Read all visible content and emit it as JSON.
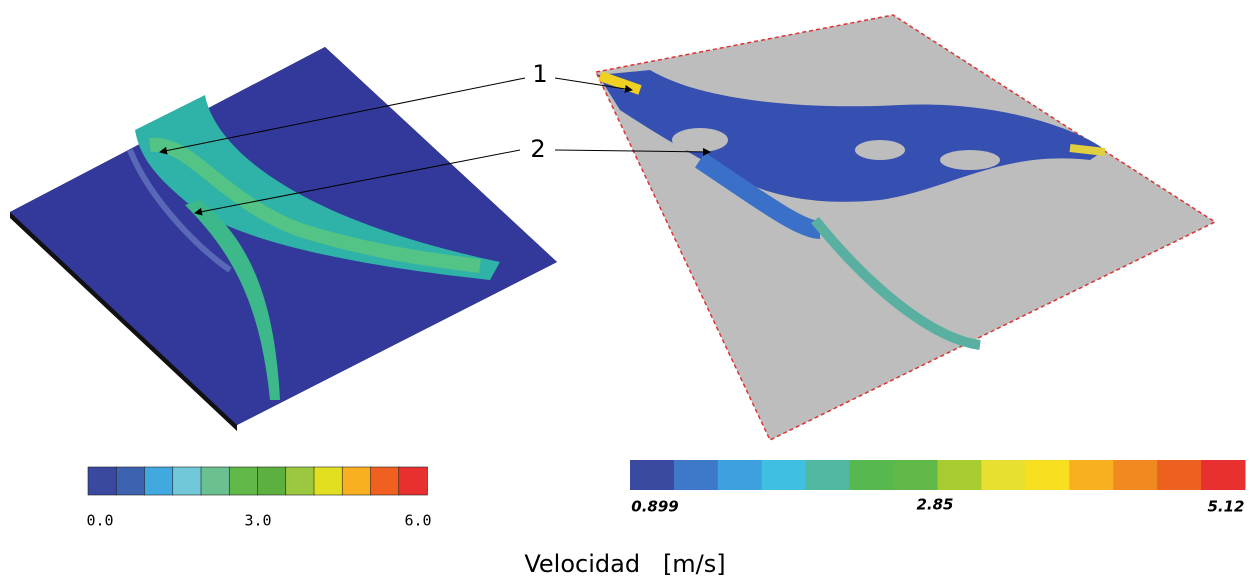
{
  "callouts": [
    "1",
    "2"
  ],
  "left_colorbar": {
    "labels": [
      "0.0",
      "3.0",
      "6.0"
    ]
  },
  "right_colorbar": {
    "labels": [
      "0.899",
      "2.85",
      "5.12"
    ]
  },
  "caption": "Velocidad   [m/s]"
}
